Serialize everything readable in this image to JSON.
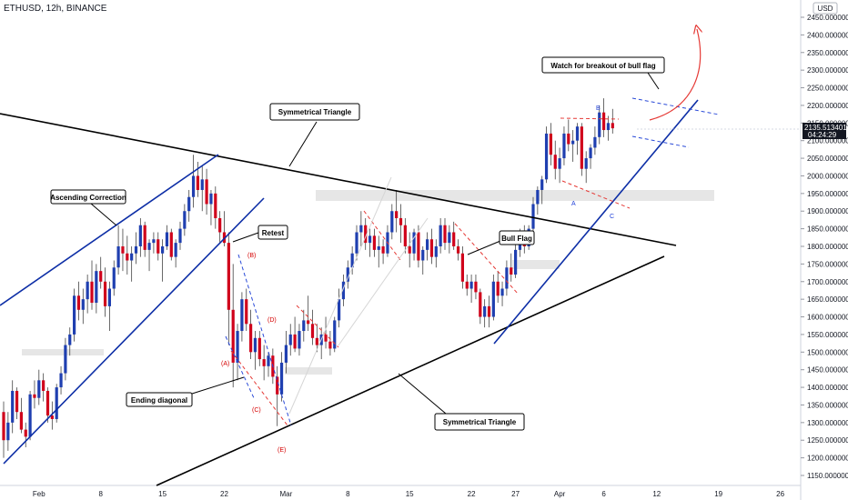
{
  "header": {
    "symbol_line": "ETHUSD, 12h, BINANCE",
    "currency": "USD"
  },
  "price_tag": {
    "price": "2135.513401",
    "countdown": "04:24:29"
  },
  "chart_data": {
    "type": "candlestick",
    "symbol": "ETHUSD",
    "interval": "12h",
    "exchange": "BINANCE",
    "ylim": [
      1130,
      2500
    ],
    "y_ticks": [
      "2450.000000",
      "2400.000000",
      "2350.000000",
      "2300.000000",
      "2250.000000",
      "2200.000000",
      "2150.000000",
      "2100.000000",
      "2050.000000",
      "2000.000000",
      "1950.000000",
      "1900.000000",
      "1850.000000",
      "1800.000000",
      "1750.000000",
      "1700.000000",
      "1650.000000",
      "1600.000000",
      "1550.000000",
      "1500.000000",
      "1450.000000",
      "1400.000000",
      "1350.000000",
      "1300.000000",
      "1250.000000",
      "1200.000000",
      "1150.000000"
    ],
    "y_tick_values": [
      2450,
      2400,
      2350,
      2300,
      2250,
      2200,
      2150,
      2100,
      2050,
      2000,
      1950,
      1900,
      1850,
      1800,
      1750,
      1700,
      1650,
      1600,
      1550,
      1500,
      1450,
      1400,
      1350,
      1300,
      1250,
      1200,
      1150
    ],
    "x_ticks": [
      {
        "label": "Feb",
        "bar": 8
      },
      {
        "label": "8",
        "bar": 22
      },
      {
        "label": "15",
        "bar": 36
      },
      {
        "label": "22",
        "bar": 50
      },
      {
        "label": "Mar",
        "bar": 64
      },
      {
        "label": "8",
        "bar": 78
      },
      {
        "label": "15",
        "bar": 92
      },
      {
        "label": "22",
        "bar": 106
      },
      {
        "label": "27",
        "bar": 116
      },
      {
        "label": "Apr",
        "bar": 126
      },
      {
        "label": "6",
        "bar": 136
      },
      {
        "label": "12",
        "bar": 148
      },
      {
        "label": "19",
        "bar": 162
      },
      {
        "label": "26",
        "bar": 176
      }
    ],
    "up_color": "#1f3fb0",
    "down_color": "#d0021b",
    "candles": [
      {
        "o": 1330,
        "h": 1360,
        "l": 1200,
        "c": 1250
      },
      {
        "o": 1250,
        "h": 1330,
        "l": 1220,
        "c": 1300
      },
      {
        "o": 1300,
        "h": 1420,
        "l": 1270,
        "c": 1390
      },
      {
        "o": 1390,
        "h": 1400,
        "l": 1310,
        "c": 1330
      },
      {
        "o": 1330,
        "h": 1370,
        "l": 1270,
        "c": 1280
      },
      {
        "o": 1280,
        "h": 1300,
        "l": 1230,
        "c": 1260
      },
      {
        "o": 1260,
        "h": 1390,
        "l": 1250,
        "c": 1380
      },
      {
        "o": 1380,
        "h": 1420,
        "l": 1340,
        "c": 1370
      },
      {
        "o": 1370,
        "h": 1450,
        "l": 1350,
        "c": 1420
      },
      {
        "o": 1420,
        "h": 1440,
        "l": 1360,
        "c": 1390
      },
      {
        "o": 1390,
        "h": 1400,
        "l": 1300,
        "c": 1320
      },
      {
        "o": 1320,
        "h": 1360,
        "l": 1280,
        "c": 1310
      },
      {
        "o": 1310,
        "h": 1410,
        "l": 1300,
        "c": 1400
      },
      {
        "o": 1400,
        "h": 1460,
        "l": 1380,
        "c": 1440
      },
      {
        "o": 1440,
        "h": 1540,
        "l": 1420,
        "c": 1520
      },
      {
        "o": 1520,
        "h": 1570,
        "l": 1490,
        "c": 1550
      },
      {
        "o": 1550,
        "h": 1680,
        "l": 1530,
        "c": 1660
      },
      {
        "o": 1660,
        "h": 1700,
        "l": 1590,
        "c": 1620
      },
      {
        "o": 1620,
        "h": 1680,
        "l": 1580,
        "c": 1650
      },
      {
        "o": 1650,
        "h": 1720,
        "l": 1610,
        "c": 1700
      },
      {
        "o": 1700,
        "h": 1760,
        "l": 1620,
        "c": 1640
      },
      {
        "o": 1640,
        "h": 1750,
        "l": 1610,
        "c": 1730
      },
      {
        "o": 1730,
        "h": 1770,
        "l": 1680,
        "c": 1700
      },
      {
        "o": 1700,
        "h": 1740,
        "l": 1600,
        "c": 1630
      },
      {
        "o": 1630,
        "h": 1700,
        "l": 1560,
        "c": 1680
      },
      {
        "o": 1680,
        "h": 1760,
        "l": 1660,
        "c": 1740
      },
      {
        "o": 1740,
        "h": 1860,
        "l": 1720,
        "c": 1800
      },
      {
        "o": 1800,
        "h": 1850,
        "l": 1730,
        "c": 1780
      },
      {
        "o": 1780,
        "h": 1830,
        "l": 1720,
        "c": 1760
      },
      {
        "o": 1760,
        "h": 1800,
        "l": 1700,
        "c": 1780
      },
      {
        "o": 1780,
        "h": 1840,
        "l": 1750,
        "c": 1800
      },
      {
        "o": 1800,
        "h": 1880,
        "l": 1770,
        "c": 1860
      },
      {
        "o": 1860,
        "h": 1870,
        "l": 1770,
        "c": 1790
      },
      {
        "o": 1790,
        "h": 1820,
        "l": 1730,
        "c": 1810
      },
      {
        "o": 1810,
        "h": 1840,
        "l": 1780,
        "c": 1820
      },
      {
        "o": 1820,
        "h": 1840,
        "l": 1760,
        "c": 1780
      },
      {
        "o": 1780,
        "h": 1820,
        "l": 1700,
        "c": 1800
      },
      {
        "o": 1800,
        "h": 1860,
        "l": 1790,
        "c": 1840
      },
      {
        "o": 1840,
        "h": 1850,
        "l": 1760,
        "c": 1770
      },
      {
        "o": 1770,
        "h": 1820,
        "l": 1740,
        "c": 1810
      },
      {
        "o": 1810,
        "h": 1870,
        "l": 1790,
        "c": 1850
      },
      {
        "o": 1850,
        "h": 1920,
        "l": 1830,
        "c": 1900
      },
      {
        "o": 1900,
        "h": 1960,
        "l": 1870,
        "c": 1940
      },
      {
        "o": 1940,
        "h": 2060,
        "l": 1910,
        "c": 2000
      },
      {
        "o": 2000,
        "h": 2040,
        "l": 1940,
        "c": 1960
      },
      {
        "o": 1960,
        "h": 2030,
        "l": 1900,
        "c": 1990
      },
      {
        "o": 1990,
        "h": 2020,
        "l": 1890,
        "c": 1920
      },
      {
        "o": 1920,
        "h": 1960,
        "l": 1860,
        "c": 1950
      },
      {
        "o": 1950,
        "h": 1970,
        "l": 1850,
        "c": 1880
      },
      {
        "o": 1880,
        "h": 1900,
        "l": 1810,
        "c": 1840
      },
      {
        "o": 1840,
        "h": 1900,
        "l": 1800,
        "c": 1810
      },
      {
        "o": 1810,
        "h": 1840,
        "l": 1520,
        "c": 1620
      },
      {
        "o": 1620,
        "h": 1750,
        "l": 1400,
        "c": 1470
      },
      {
        "o": 1470,
        "h": 1580,
        "l": 1420,
        "c": 1560
      },
      {
        "o": 1560,
        "h": 1670,
        "l": 1530,
        "c": 1650
      },
      {
        "o": 1650,
        "h": 1680,
        "l": 1560,
        "c": 1580
      },
      {
        "o": 1580,
        "h": 1620,
        "l": 1480,
        "c": 1500
      },
      {
        "o": 1500,
        "h": 1560,
        "l": 1450,
        "c": 1540
      },
      {
        "o": 1540,
        "h": 1560,
        "l": 1460,
        "c": 1480
      },
      {
        "o": 1480,
        "h": 1520,
        "l": 1420,
        "c": 1460
      },
      {
        "o": 1460,
        "h": 1500,
        "l": 1430,
        "c": 1490
      },
      {
        "o": 1490,
        "h": 1510,
        "l": 1410,
        "c": 1430
      },
      {
        "o": 1430,
        "h": 1460,
        "l": 1290,
        "c": 1380
      },
      {
        "o": 1380,
        "h": 1500,
        "l": 1360,
        "c": 1470
      },
      {
        "o": 1470,
        "h": 1560,
        "l": 1440,
        "c": 1520
      },
      {
        "o": 1520,
        "h": 1580,
        "l": 1490,
        "c": 1550
      },
      {
        "o": 1550,
        "h": 1600,
        "l": 1500,
        "c": 1510
      },
      {
        "o": 1510,
        "h": 1580,
        "l": 1490,
        "c": 1560
      },
      {
        "o": 1560,
        "h": 1620,
        "l": 1530,
        "c": 1590
      },
      {
        "o": 1590,
        "h": 1660,
        "l": 1560,
        "c": 1580
      },
      {
        "o": 1580,
        "h": 1620,
        "l": 1520,
        "c": 1540
      },
      {
        "o": 1540,
        "h": 1580,
        "l": 1500,
        "c": 1520
      },
      {
        "o": 1520,
        "h": 1570,
        "l": 1480,
        "c": 1550
      },
      {
        "o": 1550,
        "h": 1600,
        "l": 1510,
        "c": 1530
      },
      {
        "o": 1530,
        "h": 1560,
        "l": 1490,
        "c": 1510
      },
      {
        "o": 1510,
        "h": 1600,
        "l": 1500,
        "c": 1590
      },
      {
        "o": 1590,
        "h": 1680,
        "l": 1570,
        "c": 1650
      },
      {
        "o": 1650,
        "h": 1720,
        "l": 1630,
        "c": 1700
      },
      {
        "o": 1700,
        "h": 1760,
        "l": 1680,
        "c": 1740
      },
      {
        "o": 1740,
        "h": 1800,
        "l": 1720,
        "c": 1780
      },
      {
        "o": 1780,
        "h": 1860,
        "l": 1760,
        "c": 1840
      },
      {
        "o": 1840,
        "h": 1900,
        "l": 1800,
        "c": 1860
      },
      {
        "o": 1860,
        "h": 1880,
        "l": 1790,
        "c": 1810
      },
      {
        "o": 1810,
        "h": 1850,
        "l": 1770,
        "c": 1830
      },
      {
        "o": 1830,
        "h": 1850,
        "l": 1770,
        "c": 1790
      },
      {
        "o": 1790,
        "h": 1830,
        "l": 1740,
        "c": 1800
      },
      {
        "o": 1800,
        "h": 1820,
        "l": 1750,
        "c": 1780
      },
      {
        "o": 1780,
        "h": 1860,
        "l": 1770,
        "c": 1840
      },
      {
        "o": 1840,
        "h": 1920,
        "l": 1820,
        "c": 1900
      },
      {
        "o": 1900,
        "h": 1960,
        "l": 1840,
        "c": 1880
      },
      {
        "o": 1880,
        "h": 1920,
        "l": 1810,
        "c": 1860
      },
      {
        "o": 1860,
        "h": 1880,
        "l": 1780,
        "c": 1800
      },
      {
        "o": 1800,
        "h": 1840,
        "l": 1740,
        "c": 1780
      },
      {
        "o": 1780,
        "h": 1850,
        "l": 1760,
        "c": 1840
      },
      {
        "o": 1840,
        "h": 1860,
        "l": 1740,
        "c": 1760
      },
      {
        "o": 1760,
        "h": 1800,
        "l": 1720,
        "c": 1790
      },
      {
        "o": 1790,
        "h": 1840,
        "l": 1760,
        "c": 1820
      },
      {
        "o": 1820,
        "h": 1850,
        "l": 1750,
        "c": 1770
      },
      {
        "o": 1770,
        "h": 1820,
        "l": 1740,
        "c": 1800
      },
      {
        "o": 1800,
        "h": 1880,
        "l": 1780,
        "c": 1860
      },
      {
        "o": 1860,
        "h": 1880,
        "l": 1790,
        "c": 1810
      },
      {
        "o": 1810,
        "h": 1860,
        "l": 1780,
        "c": 1840
      },
      {
        "o": 1840,
        "h": 1870,
        "l": 1790,
        "c": 1800
      },
      {
        "o": 1800,
        "h": 1820,
        "l": 1760,
        "c": 1780
      },
      {
        "o": 1780,
        "h": 1800,
        "l": 1680,
        "c": 1700
      },
      {
        "o": 1700,
        "h": 1720,
        "l": 1660,
        "c": 1680
      },
      {
        "o": 1680,
        "h": 1720,
        "l": 1640,
        "c": 1700
      },
      {
        "o": 1700,
        "h": 1720,
        "l": 1650,
        "c": 1670
      },
      {
        "o": 1670,
        "h": 1680,
        "l": 1580,
        "c": 1600
      },
      {
        "o": 1600,
        "h": 1650,
        "l": 1570,
        "c": 1630
      },
      {
        "o": 1630,
        "h": 1660,
        "l": 1570,
        "c": 1600
      },
      {
        "o": 1600,
        "h": 1720,
        "l": 1590,
        "c": 1700
      },
      {
        "o": 1700,
        "h": 1730,
        "l": 1640,
        "c": 1660
      },
      {
        "o": 1660,
        "h": 1700,
        "l": 1630,
        "c": 1680
      },
      {
        "o": 1680,
        "h": 1760,
        "l": 1660,
        "c": 1740
      },
      {
        "o": 1740,
        "h": 1780,
        "l": 1700,
        "c": 1720
      },
      {
        "o": 1720,
        "h": 1810,
        "l": 1710,
        "c": 1790
      },
      {
        "o": 1790,
        "h": 1850,
        "l": 1770,
        "c": 1830
      },
      {
        "o": 1830,
        "h": 1860,
        "l": 1780,
        "c": 1800
      },
      {
        "o": 1800,
        "h": 1860,
        "l": 1790,
        "c": 1850
      },
      {
        "o": 1850,
        "h": 1940,
        "l": 1830,
        "c": 1920
      },
      {
        "o": 1920,
        "h": 1970,
        "l": 1890,
        "c": 1960
      },
      {
        "o": 1960,
        "h": 2000,
        "l": 1920,
        "c": 1990
      },
      {
        "o": 1990,
        "h": 2140,
        "l": 1980,
        "c": 2120
      },
      {
        "o": 2120,
        "h": 2150,
        "l": 2030,
        "c": 2060
      },
      {
        "o": 2060,
        "h": 2100,
        "l": 1990,
        "c": 2020
      },
      {
        "o": 2020,
        "h": 2080,
        "l": 1980,
        "c": 2050
      },
      {
        "o": 2050,
        "h": 2140,
        "l": 2030,
        "c": 2120
      },
      {
        "o": 2120,
        "h": 2160,
        "l": 2070,
        "c": 2090
      },
      {
        "o": 2090,
        "h": 2130,
        "l": 2040,
        "c": 2100
      },
      {
        "o": 2100,
        "h": 2150,
        "l": 2060,
        "c": 2140
      },
      {
        "o": 2140,
        "h": 2150,
        "l": 2000,
        "c": 2020
      },
      {
        "o": 2020,
        "h": 2070,
        "l": 1980,
        "c": 2050
      },
      {
        "o": 2050,
        "h": 2090,
        "l": 2020,
        "c": 2080
      },
      {
        "o": 2080,
        "h": 2140,
        "l": 2060,
        "c": 2110
      },
      {
        "o": 2110,
        "h": 2200,
        "l": 2090,
        "c": 2180
      },
      {
        "o": 2180,
        "h": 2220,
        "l": 2110,
        "c": 2130
      },
      {
        "o": 2130,
        "h": 2170,
        "l": 2100,
        "c": 2150
      },
      {
        "o": 2150,
        "h": 2190,
        "l": 2120,
        "c": 2135
      }
    ],
    "price_levels": [
      {
        "label": "Symmetrical Triangle"
      },
      {
        "label": "Ascending Correction"
      },
      {
        "label": "Retest"
      },
      {
        "label": "Ending diagonal"
      },
      {
        "label": "Bull Flag"
      },
      {
        "label": "Watch for breakout of bull flag"
      }
    ],
    "wave_labels_red": [
      "(A)",
      "(B)",
      "(C)",
      "(D)",
      "(E)"
    ],
    "wave_labels_blue": [
      "A",
      "B",
      "C"
    ]
  }
}
